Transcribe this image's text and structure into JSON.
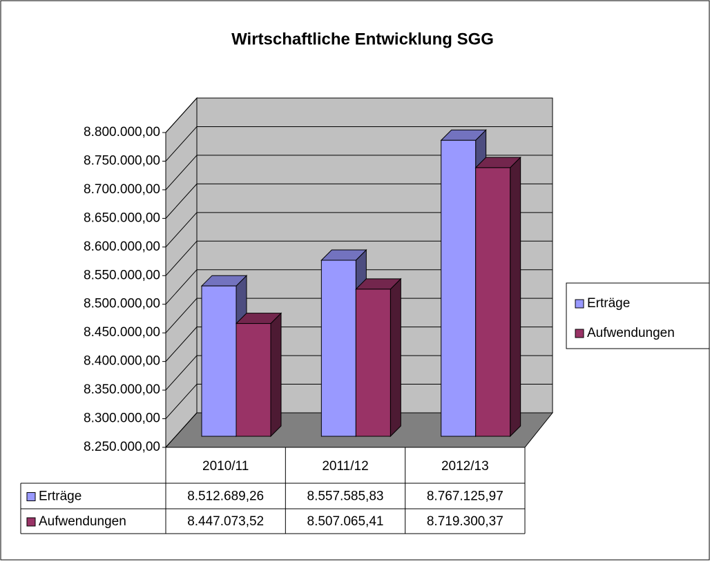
{
  "chart_data": {
    "type": "bar3d",
    "title": "Wirtschaftliche Entwicklung SGG",
    "categories": [
      "2010/11",
      "2011/12",
      "2012/13"
    ],
    "series": [
      {
        "name": "Erträge",
        "color": "#9999ff",
        "values": [
          8512689.26,
          8557585.83,
          8767125.97
        ],
        "value_labels": [
          "8.512.689,26",
          "8.557.585,83",
          "8.767.125,97"
        ]
      },
      {
        "name": "Aufwendungen",
        "color": "#993366",
        "values": [
          8447073.52,
          8507065.41,
          8719300.37
        ],
        "value_labels": [
          "8.447.073,52",
          "8.507.065,41",
          "8.719.300,37"
        ]
      }
    ],
    "ylim": [
      8250000,
      8800000
    ],
    "yticks": [
      {
        "value": 8250000,
        "label": "8.250.000,00"
      },
      {
        "value": 8300000,
        "label": "8.300.000,00"
      },
      {
        "value": 8350000,
        "label": "8.350.000,00"
      },
      {
        "value": 8400000,
        "label": "8.400.000,00"
      },
      {
        "value": 8450000,
        "label": "8.450.000,00"
      },
      {
        "value": 8500000,
        "label": "8.500.000,00"
      },
      {
        "value": 8550000,
        "label": "8.550.000,00"
      },
      {
        "value": 8600000,
        "label": "8.600.000,00"
      },
      {
        "value": 8650000,
        "label": "8.650.000,00"
      },
      {
        "value": 8700000,
        "label": "8.700.000,00"
      },
      {
        "value": 8750000,
        "label": "8.750.000,00"
      },
      {
        "value": 8800000,
        "label": "8.800.000,00"
      }
    ],
    "grid": true,
    "legend": "right",
    "data_table": true
  }
}
